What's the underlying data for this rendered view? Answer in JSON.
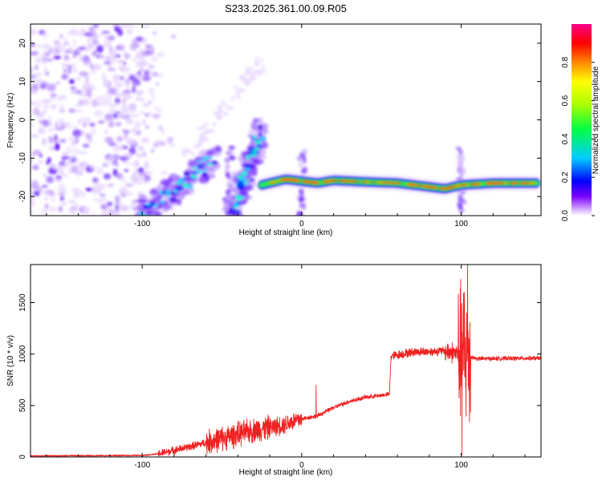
{
  "title": "S233.2025.361.00.09.R05",
  "colors": {
    "snr_line": "#ee2222",
    "spectrogram_ridge": [
      "#ff3333",
      "#ff9900",
      "#33ee33",
      "#00ccff",
      "#3300ee"
    ],
    "noise": [
      "#e8d8ff",
      "#c9a8ff",
      "#9966ff",
      "#6a1bff"
    ]
  },
  "chart_data": [
    {
      "type": "heatmap",
      "name": "spectrogram",
      "xlabel": "Height of straight line (km)",
      "ylabel": "Frequency (Hz)",
      "xlim": [
        -170,
        150
      ],
      "ylim": [
        -25,
        25
      ],
      "x_ticks": [
        -100,
        0,
        100
      ],
      "x_tick_labels": [
        "-100",
        "0",
        "100"
      ],
      "y_ticks": [
        -20,
        -10,
        0,
        10,
        20
      ],
      "y_tick_labels": [
        "-20",
        "-10",
        "0",
        "10",
        "20"
      ],
      "colorbar": {
        "label": "Normalized spectral amplitude",
        "range": [
          0,
          1
        ],
        "ticks": [
          0,
          0.2,
          0.4,
          0.6,
          0.8
        ],
        "tick_labels": [
          "0.0",
          "0.2",
          "0.4",
          "0.6",
          "0.8"
        ],
        "stops": [
          "#ffffff",
          "#7c00ff",
          "#0000ff",
          "#00ccff",
          "#00ff44",
          "#aaff00",
          "#ffff00",
          "#ff8800",
          "#ff0000",
          "#ff0088"
        ]
      },
      "features": {
        "noise_region_x": [
          -170,
          -95
        ],
        "diagonal_ridges": [
          {
            "x": [
              -100,
              -55
            ],
            "y": [
              -25,
              -10
            ]
          },
          {
            "x": [
              -45,
              -25
            ],
            "y": [
              -25,
              -3
            ]
          }
        ],
        "main_ridge": {
          "x": [
            -25,
            -15,
            -10,
            0,
            10,
            20,
            40,
            60,
            80,
            90,
            100,
            120,
            148
          ],
          "y": [
            -17,
            -16,
            -15.5,
            -16,
            -16.5,
            -15.8,
            -16.2,
            -16.5,
            -17.5,
            -18,
            -17,
            -16.5,
            -16.5
          ]
        },
        "vertical_bursts_x": [
          -45,
          0,
          100
        ]
      }
    },
    {
      "type": "line",
      "name": "snr",
      "xlabel": "Height of straight line (km)",
      "ylabel": "SNR (10 * v/v)",
      "xlim": [
        -170,
        150
      ],
      "ylim": [
        0,
        1870
      ],
      "x_ticks": [
        -100,
        0,
        100
      ],
      "x_tick_labels": [
        "-100",
        "0",
        "100"
      ],
      "y_ticks": [
        0,
        500,
        1000,
        1500
      ],
      "y_tick_labels": [
        "0",
        "500",
        "1000",
        "1500"
      ],
      "baseline_profile": {
        "x": [
          -170,
          -100,
          -90,
          -70,
          -50,
          -30,
          -15,
          0,
          10,
          20,
          30,
          40,
          55,
          56,
          70,
          90,
          100,
          110,
          150
        ],
        "y": [
          10,
          15,
          30,
          100,
          180,
          260,
          300,
          370,
          400,
          480,
          540,
          580,
          610,
          980,
          1020,
          1030,
          1000,
          955,
          960
        ]
      },
      "noise_amplitude": [
        {
          "x_from": -170,
          "x_to": -90,
          "amp": 8
        },
        {
          "x_from": -90,
          "x_to": -60,
          "amp": 45
        },
        {
          "x_from": -60,
          "x_to": -20,
          "amp": 140
        },
        {
          "x_from": -20,
          "x_to": 0,
          "amp": 110
        },
        {
          "x_from": 0,
          "x_to": 55,
          "amp": 25
        },
        {
          "x_from": 55,
          "x_to": 90,
          "amp": 50
        },
        {
          "x_from": 90,
          "x_to": 98,
          "amp": 120
        },
        {
          "x_from": 98,
          "x_to": 106,
          "amp": 800
        },
        {
          "x_from": 106,
          "x_to": 150,
          "amp": 25
        }
      ],
      "spikes": [
        {
          "x": 9,
          "y": 700
        },
        {
          "x": 10,
          "y": 390
        },
        {
          "x": 100.5,
          "y": 20
        },
        {
          "x": 102,
          "y": 1600
        },
        {
          "x": 104,
          "y": 1870
        }
      ]
    }
  ]
}
